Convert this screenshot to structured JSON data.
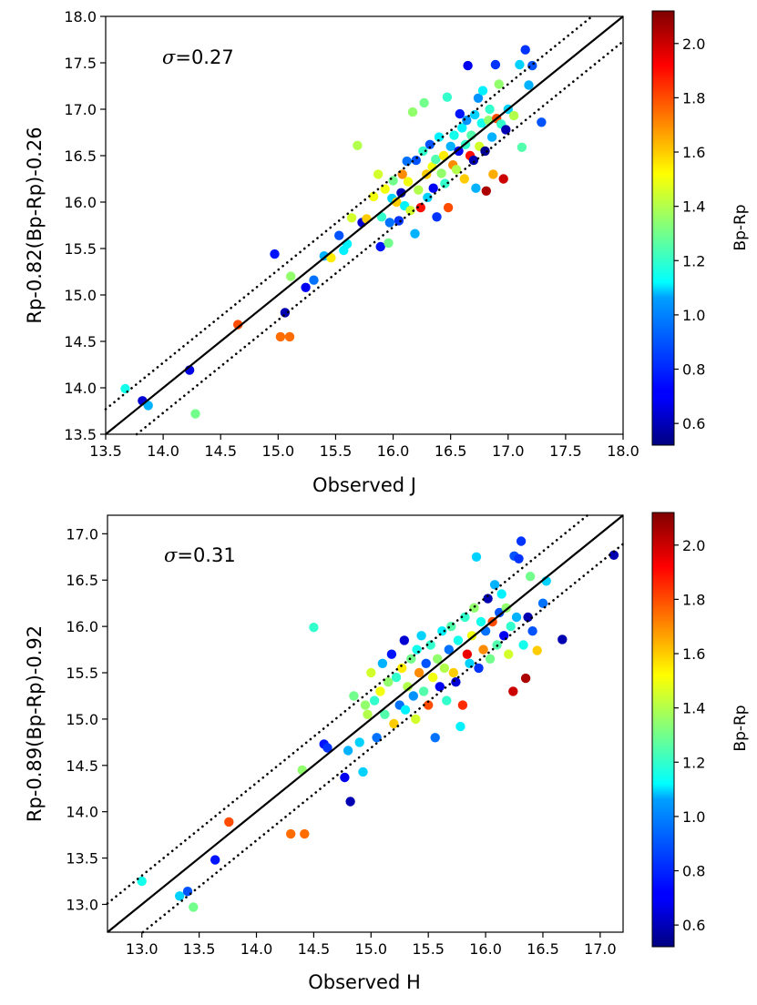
{
  "colormap": {
    "name": "jet",
    "stops": [
      "#00007f",
      "#0000ff",
      "#007fff",
      "#00ffff",
      "#7fff7f",
      "#ffff00",
      "#ff7f00",
      "#ff0000",
      "#7f0000"
    ]
  },
  "chart_data": [
    {
      "type": "scatter",
      "title": "",
      "xlabel": "Observed J",
      "ylabel": "Rp-0.82(Bp-Rp)-0.26",
      "annotation": "=0.27",
      "annotation_symbol": "σ",
      "sigma": 0.27,
      "xlim": [
        13.5,
        18.0
      ],
      "ylim": [
        13.5,
        18.0
      ],
      "xticks": [
        "13.5",
        "14.0",
        "14.5",
        "15.0",
        "15.5",
        "16.0",
        "16.5",
        "17.0",
        "17.5",
        "18.0"
      ],
      "yticks": [
        "13.5",
        "14.0",
        "14.5",
        "15.0",
        "15.5",
        "16.0",
        "16.5",
        "17.0",
        "17.5",
        "18.0"
      ],
      "colorbar": {
        "label": "Bp-Rp",
        "range": [
          0.52,
          2.12
        ],
        "ticks": [
          "0.6",
          "0.8",
          "1.0",
          "1.2",
          "1.4",
          "1.6",
          "1.8",
          "2.0"
        ]
      },
      "lines": [
        {
          "style": "solid",
          "intercept": 0.0
        },
        {
          "style": "dotted",
          "intercept": 0.27
        },
        {
          "style": "dotted",
          "intercept": -0.27
        }
      ],
      "points": [
        [
          13.67,
          13.99,
          1.15
        ],
        [
          13.82,
          13.86,
          0.65
        ],
        [
          13.87,
          13.81,
          1.0
        ],
        [
          14.23,
          14.19,
          0.68
        ],
        [
          14.28,
          13.72,
          1.3
        ],
        [
          14.65,
          14.68,
          1.8
        ],
        [
          14.97,
          15.44,
          0.75
        ],
        [
          15.02,
          14.55,
          1.75
        ],
        [
          15.1,
          14.55,
          1.75
        ],
        [
          15.06,
          14.81,
          0.6
        ],
        [
          15.11,
          15.2,
          1.35
        ],
        [
          15.24,
          15.08,
          0.7
        ],
        [
          15.31,
          15.16,
          0.9
        ],
        [
          15.4,
          15.42,
          1.0
        ],
        [
          15.46,
          15.4,
          1.55
        ],
        [
          15.53,
          15.64,
          0.85
        ],
        [
          15.57,
          15.48,
          1.1
        ],
        [
          15.6,
          15.55,
          1.1
        ],
        [
          15.64,
          15.83,
          1.45
        ],
        [
          15.69,
          16.61,
          1.4
        ],
        [
          15.73,
          15.78,
          0.65
        ],
        [
          15.77,
          15.82,
          1.6
        ],
        [
          15.83,
          16.06,
          1.5
        ],
        [
          15.87,
          16.3,
          1.45
        ],
        [
          15.89,
          15.52,
          0.75
        ],
        [
          15.9,
          15.84,
          1.2
        ],
        [
          15.93,
          16.14,
          1.5
        ],
        [
          15.96,
          15.56,
          1.3
        ],
        [
          15.97,
          15.78,
          0.9
        ],
        [
          15.99,
          16.04,
          1.05
        ],
        [
          16.0,
          16.23,
          1.3
        ],
        [
          16.03,
          16.0,
          1.6
        ],
        [
          16.05,
          15.8,
          0.8
        ],
        [
          16.07,
          16.1,
          0.6
        ],
        [
          16.08,
          16.3,
          1.7
        ],
        [
          16.1,
          15.96,
          1.1
        ],
        [
          16.12,
          16.44,
          0.9
        ],
        [
          16.13,
          16.22,
          1.5
        ],
        [
          16.15,
          15.91,
          1.45
        ],
        [
          16.17,
          16.97,
          1.35
        ],
        [
          16.19,
          15.66,
          1.0
        ],
        [
          16.2,
          16.45,
          0.85
        ],
        [
          16.22,
          16.13,
          1.4
        ],
        [
          16.24,
          15.94,
          1.9
        ],
        [
          16.26,
          16.55,
          1.2
        ],
        [
          16.27,
          17.07,
          1.3
        ],
        [
          16.29,
          16.3,
          1.6
        ],
        [
          16.3,
          16.05,
          1.05
        ],
        [
          16.32,
          16.62,
          0.85
        ],
        [
          16.34,
          16.38,
          1.5
        ],
        [
          16.35,
          16.15,
          0.7
        ],
        [
          16.37,
          16.46,
          1.25
        ],
        [
          16.38,
          15.84,
          0.8
        ],
        [
          16.4,
          16.7,
          1.1
        ],
        [
          16.42,
          16.31,
          1.35
        ],
        [
          16.44,
          16.5,
          1.55
        ],
        [
          16.45,
          16.2,
          1.2
        ],
        [
          16.47,
          17.13,
          1.2
        ],
        [
          16.48,
          15.94,
          1.8
        ],
        [
          16.5,
          16.6,
          1.0
        ],
        [
          16.52,
          16.4,
          1.7
        ],
        [
          16.53,
          16.72,
          1.15
        ],
        [
          16.55,
          16.35,
          1.4
        ],
        [
          16.57,
          16.55,
          0.7
        ],
        [
          16.58,
          16.95,
          0.75
        ],
        [
          16.6,
          16.8,
          1.1
        ],
        [
          16.62,
          16.25,
          1.6
        ],
        [
          16.63,
          16.62,
          1.2
        ],
        [
          16.64,
          16.88,
          0.95
        ],
        [
          16.65,
          17.47,
          0.7
        ],
        [
          16.67,
          16.5,
          1.9
        ],
        [
          16.68,
          16.72,
          1.25
        ],
        [
          16.7,
          16.45,
          0.6
        ],
        [
          16.71,
          16.94,
          1.05
        ],
        [
          16.72,
          16.15,
          1.0
        ],
        [
          16.74,
          17.12,
          0.95
        ],
        [
          16.75,
          16.6,
          1.45
        ],
        [
          16.77,
          16.85,
          1.15
        ],
        [
          16.78,
          17.2,
          1.1
        ],
        [
          16.8,
          16.55,
          0.55
        ],
        [
          16.81,
          16.12,
          2.05
        ],
        [
          16.83,
          16.88,
          1.35
        ],
        [
          16.84,
          17.0,
          1.2
        ],
        [
          16.86,
          16.7,
          1.0
        ],
        [
          16.87,
          16.3,
          1.65
        ],
        [
          16.89,
          17.48,
          0.8
        ],
        [
          16.9,
          16.9,
          1.8
        ],
        [
          16.92,
          17.27,
          1.35
        ],
        [
          16.94,
          16.84,
          1.2
        ],
        [
          16.96,
          16.25,
          2.0
        ],
        [
          16.98,
          16.78,
          0.6
        ],
        [
          17.0,
          17.0,
          1.05
        ],
        [
          17.05,
          16.93,
          1.4
        ],
        [
          17.1,
          17.48,
          1.05
        ],
        [
          17.12,
          16.59,
          1.25
        ],
        [
          17.15,
          17.64,
          0.8
        ],
        [
          17.18,
          17.26,
          1.0
        ],
        [
          17.21,
          17.47,
          0.85
        ],
        [
          17.29,
          16.86,
          0.85
        ]
      ]
    },
    {
      "type": "scatter",
      "title": "",
      "xlabel": "Observed H",
      "ylabel": "Rp-0.89(Bp-Rp)-0.92",
      "annotation": "=0.31",
      "annotation_symbol": "σ",
      "sigma": 0.31,
      "xlim": [
        12.7,
        17.2
      ],
      "ylim": [
        12.7,
        17.2
      ],
      "xticks": [
        "13.0",
        "13.5",
        "14.0",
        "14.5",
        "15.0",
        "15.5",
        "16.0",
        "16.5",
        "17.0"
      ],
      "yticks": [
        "13.0",
        "13.5",
        "14.0",
        "14.5",
        "15.0",
        "15.5",
        "16.0",
        "16.5",
        "17.0"
      ],
      "colorbar": {
        "label": "Bp-Rp",
        "range": [
          0.52,
          2.12
        ],
        "ticks": [
          "0.6",
          "0.8",
          "1.0",
          "1.2",
          "1.4",
          "1.6",
          "1.8",
          "2.0"
        ]
      },
      "lines": [
        {
          "style": "solid",
          "intercept": 0.0
        },
        {
          "style": "dotted",
          "intercept": 0.31
        },
        {
          "style": "dotted",
          "intercept": -0.31
        }
      ],
      "points": [
        [
          13.0,
          13.25,
          1.15
        ],
        [
          13.33,
          13.09,
          1.05
        ],
        [
          13.4,
          13.14,
          0.85
        ],
        [
          13.45,
          12.97,
          1.3
        ],
        [
          13.64,
          13.48,
          0.75
        ],
        [
          13.76,
          13.89,
          1.8
        ],
        [
          14.3,
          13.76,
          1.75
        ],
        [
          14.42,
          13.76,
          1.75
        ],
        [
          14.4,
          14.45,
          1.35
        ],
        [
          14.5,
          15.99,
          1.2
        ],
        [
          14.59,
          14.73,
          0.75
        ],
        [
          14.62,
          14.69,
          0.8
        ],
        [
          14.77,
          14.37,
          0.7
        ],
        [
          14.82,
          14.11,
          0.6
        ],
        [
          14.8,
          14.66,
          1.0
        ],
        [
          14.85,
          15.25,
          1.3
        ],
        [
          14.9,
          14.75,
          1.05
        ],
        [
          14.93,
          14.43,
          1.05
        ],
        [
          14.95,
          15.15,
          1.35
        ],
        [
          14.97,
          15.05,
          1.4
        ],
        [
          15.0,
          15.5,
          1.45
        ],
        [
          15.03,
          15.2,
          1.2
        ],
        [
          15.05,
          14.8,
          0.9
        ],
        [
          15.08,
          15.3,
          1.5
        ],
        [
          15.1,
          15.6,
          1.0
        ],
        [
          15.12,
          15.05,
          1.25
        ],
        [
          15.15,
          15.4,
          1.35
        ],
        [
          15.18,
          15.7,
          0.75
        ],
        [
          15.2,
          14.95,
          1.6
        ],
        [
          15.22,
          15.45,
          1.2
        ],
        [
          15.25,
          15.15,
          0.9
        ],
        [
          15.27,
          15.55,
          1.55
        ],
        [
          15.29,
          15.85,
          0.65
        ],
        [
          15.3,
          15.1,
          1.1
        ],
        [
          15.32,
          15.35,
          1.4
        ],
        [
          15.35,
          15.65,
          1.3
        ],
        [
          15.37,
          15.25,
          0.95
        ],
        [
          15.39,
          15.0,
          1.45
        ],
        [
          15.4,
          15.75,
          1.15
        ],
        [
          15.42,
          15.5,
          1.7
        ],
        [
          15.44,
          15.9,
          1.05
        ],
        [
          15.46,
          15.3,
          1.25
        ],
        [
          15.48,
          15.6,
          0.85
        ],
        [
          15.5,
          15.15,
          1.8
        ],
        [
          15.52,
          15.8,
          1.2
        ],
        [
          15.54,
          15.45,
          1.5
        ],
        [
          15.56,
          14.8,
          0.9
        ],
        [
          15.58,
          15.65,
          1.35
        ],
        [
          15.6,
          15.35,
          0.7
        ],
        [
          15.62,
          15.95,
          1.1
        ],
        [
          15.64,
          15.55,
          1.4
        ],
        [
          15.66,
          15.2,
          1.2
        ],
        [
          15.68,
          15.75,
          0.9
        ],
        [
          15.7,
          16.0,
          1.25
        ],
        [
          15.72,
          15.5,
          1.6
        ],
        [
          15.74,
          15.4,
          0.65
        ],
        [
          15.76,
          15.85,
          1.15
        ],
        [
          15.78,
          14.92,
          1.1
        ],
        [
          15.8,
          15.15,
          1.85
        ],
        [
          15.82,
          16.1,
          1.2
        ],
        [
          15.84,
          15.7,
          1.95
        ],
        [
          15.86,
          15.6,
          1.05
        ],
        [
          15.88,
          15.9,
          1.5
        ],
        [
          15.9,
          16.2,
          1.35
        ],
        [
          15.92,
          16.75,
          1.05
        ],
        [
          15.94,
          15.55,
          0.8
        ],
        [
          15.96,
          16.05,
          1.15
        ],
        [
          15.98,
          15.75,
          1.7
        ],
        [
          16.0,
          15.95,
          0.9
        ],
        [
          16.02,
          16.3,
          0.6
        ],
        [
          16.04,
          15.65,
          1.3
        ],
        [
          16.06,
          16.05,
          1.8
        ],
        [
          16.08,
          16.45,
          1.0
        ],
        [
          16.1,
          15.8,
          1.25
        ],
        [
          16.12,
          16.15,
          0.85
        ],
        [
          16.14,
          16.35,
          1.1
        ],
        [
          16.16,
          15.9,
          0.7
        ],
        [
          16.18,
          16.2,
          1.35
        ],
        [
          16.2,
          15.7,
          1.45
        ],
        [
          16.22,
          16.0,
          1.2
        ],
        [
          16.24,
          15.3,
          2.0
        ],
        [
          16.25,
          16.76,
          0.85
        ],
        [
          16.27,
          16.1,
          1.0
        ],
        [
          16.29,
          16.73,
          0.8
        ],
        [
          16.31,
          16.92,
          0.8
        ],
        [
          16.33,
          15.8,
          1.15
        ],
        [
          16.35,
          15.44,
          2.05
        ],
        [
          16.37,
          16.1,
          0.6
        ],
        [
          16.39,
          16.54,
          1.3
        ],
        [
          16.41,
          15.95,
          0.85
        ],
        [
          16.45,
          15.74,
          1.6
        ],
        [
          16.5,
          16.25,
          0.9
        ],
        [
          16.53,
          16.49,
          1.05
        ],
        [
          16.67,
          15.86,
          0.6
        ],
        [
          17.12,
          16.77,
          0.6
        ]
      ]
    }
  ]
}
